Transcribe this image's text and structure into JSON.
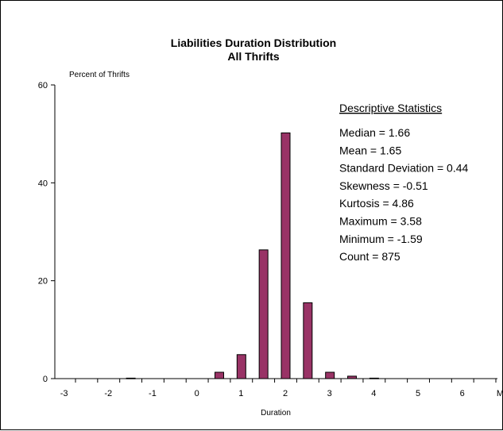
{
  "chart_data": {
    "type": "bar",
    "title": "Liabilities Duration Distribution",
    "subtitle": "All Thrifts",
    "xlabel": "Duration",
    "ylabel": "Percent of Thrifts",
    "categories": [
      "-3",
      "-2.5",
      "-2",
      "-1.5",
      "-1",
      "-0.5",
      "0",
      "0.5",
      "1",
      "1.5",
      "2",
      "2.5",
      "3",
      "3.5",
      "4",
      "4.5",
      "5",
      "5.5",
      "6",
      "More"
    ],
    "x_tick_labels": [
      "-3",
      "-2",
      "-1",
      "0",
      "1",
      "2",
      "3",
      "4",
      "5",
      "6",
      "More"
    ],
    "values": [
      0,
      0,
      0,
      0.1,
      0,
      0,
      0,
      1.3,
      4.9,
      26.3,
      50.2,
      15.5,
      1.3,
      0.5,
      0.1,
      0,
      0,
      0,
      0,
      0
    ],
    "ylim": [
      0,
      60
    ],
    "y_ticks": [
      0,
      20,
      40,
      60
    ],
    "grid": false,
    "legend": "none",
    "bar_color": "#993366",
    "annotation": {
      "heading": "Descriptive Statistics",
      "lines": [
        "Median = 1.66",
        "Mean = 1.65",
        "Standard Deviation = 0.44",
        "Skewness = -0.51",
        "Kurtosis = 4.86",
        "Maximum = 3.58",
        "Minimum = -1.59",
        "Count = 875"
      ]
    }
  }
}
